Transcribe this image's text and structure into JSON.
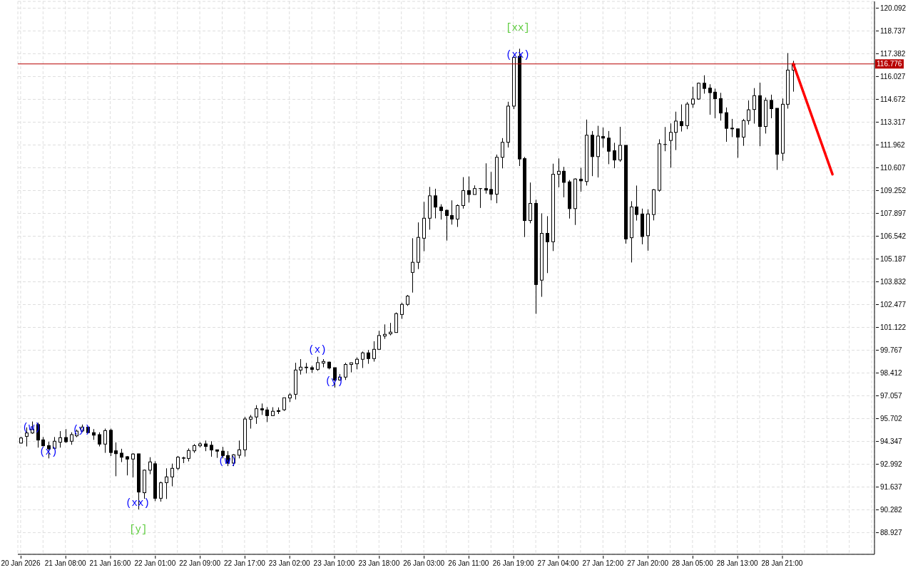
{
  "chart_data": {
    "type": "candlestick",
    "color": "#000000",
    "categories": [
      "20 Jan 2026",
      null,
      null,
      null,
      null,
      null,
      null,
      null,
      "21 Jan 08:00",
      null,
      null,
      null,
      null,
      null,
      null,
      null,
      "21 Jan 16:00",
      null,
      null,
      null,
      null,
      null,
      null,
      null,
      "22 Jan 01:00",
      null,
      null,
      null,
      null,
      null,
      null,
      null,
      "22 Jan 09:00",
      null,
      null,
      null,
      null,
      null,
      null,
      null,
      "22 Jan 17:00",
      null,
      null,
      null,
      null,
      null,
      null,
      null,
      "23 Jan 02:00",
      null,
      null,
      null,
      null,
      null,
      null,
      null,
      "23 Jan 10:00",
      null,
      null,
      null,
      null,
      null,
      null,
      null,
      "23 Jan 18:00",
      null,
      null,
      null,
      null,
      null,
      null,
      null,
      "26 Jan 03:00",
      null,
      null,
      null,
      null,
      null,
      null,
      null,
      "26 Jan 11:00",
      null,
      null,
      null,
      null,
      null,
      null,
      null,
      "26 Jan 19:00",
      null,
      null,
      null,
      null,
      null,
      null,
      null,
      "27 Jan 04:00",
      null,
      null,
      null,
      null,
      null,
      null,
      null,
      "27 Jan 12:00",
      null,
      null,
      null,
      null,
      null,
      null,
      null,
      "27 Jan 20:00",
      null,
      null,
      null,
      null,
      null,
      null,
      null,
      "28 Jan 05:00",
      null,
      null,
      null,
      null,
      null,
      null,
      null,
      "28 Jan 13:00",
      null,
      null,
      null,
      null,
      null,
      null,
      null,
      "28 Jan 21:00",
      null,
      null,
      null,
      null,
      null,
      null,
      null,
      null,
      null,
      null,
      null,
      null,
      null,
      null,
      null,
      null
    ],
    "ohlc": [
      [
        94.25,
        94.62,
        94.22,
        94.55
      ],
      [
        94.65,
        95.18,
        94.05,
        94.85
      ],
      [
        94.85,
        95.53,
        94.8,
        95.08
      ],
      [
        95.35,
        95.46,
        93.98,
        94.43
      ],
      [
        94.44,
        94.61,
        94.05,
        94.09
      ],
      [
        94.1,
        94.33,
        93.34,
        93.91
      ],
      [
        93.94,
        94.61,
        93.88,
        94.36
      ],
      [
        94.3,
        94.96,
        93.98,
        94.57
      ],
      [
        94.58,
        95.08,
        94.26,
        94.33
      ],
      [
        94.36,
        94.89,
        94.15,
        94.75
      ],
      [
        94.68,
        95.05,
        94.6,
        94.96
      ],
      [
        94.97,
        95.35,
        94.9,
        95.2
      ],
      [
        95.2,
        95.25,
        94.85,
        94.87
      ],
      [
        94.87,
        95.08,
        94.44,
        94.72
      ],
      [
        94.75,
        94.89,
        94.05,
        94.19
      ],
      [
        94.19,
        95.11,
        93.67,
        94.99
      ],
      [
        95.01,
        95.11,
        93.48,
        93.69
      ],
      [
        93.79,
        94.29,
        92.28,
        93.62
      ],
      [
        93.65,
        93.91,
        93.12,
        93.41
      ],
      [
        93.44,
        93.48,
        92.33,
        93.3
      ],
      [
        93.3,
        93.65,
        92.21,
        93.6
      ],
      [
        93.61,
        93.62,
        90.31,
        91.34
      ],
      [
        91.3,
        92.68,
        90.94,
        92.64
      ],
      [
        92.64,
        93.41,
        92.4,
        93.13
      ],
      [
        93.02,
        93.17,
        90.8,
        90.97
      ],
      [
        90.97,
        91.96,
        90.77,
        91.89
      ],
      [
        91.9,
        92.75,
        90.93,
        92.24
      ],
      [
        92.24,
        93.03,
        91.68,
        92.75
      ],
      [
        92.75,
        93.48,
        92.64,
        93.41
      ],
      [
        93.37,
        93.44,
        93.06,
        93.35
      ],
      [
        93.34,
        93.93,
        93.16,
        93.81
      ],
      [
        93.79,
        94.19,
        93.67,
        94.1
      ],
      [
        94.09,
        94.3,
        94.0,
        94.2
      ],
      [
        94.2,
        94.4,
        93.77,
        94.05
      ],
      [
        94.12,
        94.36,
        93.44,
        93.84
      ],
      [
        93.85,
        93.86,
        93.37,
        93.77
      ],
      [
        93.77,
        94.02,
        93.34,
        93.51
      ],
      [
        93.51,
        93.77,
        92.88,
        93.06
      ],
      [
        93.06,
        93.59,
        92.88,
        93.55
      ],
      [
        93.53,
        94.4,
        93.34,
        93.85
      ],
      [
        93.85,
        95.81,
        93.45,
        95.68
      ],
      [
        95.67,
        95.92,
        95.11,
        95.8
      ],
      [
        95.8,
        96.5,
        95.39,
        96.29
      ],
      [
        96.29,
        96.6,
        95.92,
        96.22
      ],
      [
        96.22,
        96.39,
        95.5,
        95.88
      ],
      [
        95.88,
        96.38,
        95.86,
        96.14
      ],
      [
        96.18,
        96.37,
        95.98,
        96.13
      ],
      [
        96.23,
        96.95,
        96.16,
        96.94
      ],
      [
        96.93,
        97.22,
        96.69,
        97.11
      ],
      [
        97.15,
        99.02,
        96.84,
        98.59
      ],
      [
        98.59,
        99.24,
        98.32,
        98.76
      ],
      [
        98.76,
        99.01,
        98.39,
        98.73
      ],
      [
        98.73,
        98.85,
        98.42,
        98.63
      ],
      [
        98.63,
        99.38,
        98.54,
        99.03
      ],
      [
        99.0,
        99.24,
        98.75,
        99.1
      ],
      [
        99.06,
        99.09,
        98.63,
        98.71
      ],
      [
        98.73,
        98.73,
        97.55,
        98.0
      ],
      [
        98.0,
        98.35,
        97.95,
        98.17
      ],
      [
        98.17,
        99.02,
        98.0,
        98.92
      ],
      [
        98.92,
        99.03,
        98.45,
        99.02
      ],
      [
        98.96,
        99.34,
        98.63,
        99.23
      ],
      [
        99.23,
        99.69,
        98.71,
        99.61
      ],
      [
        99.61,
        99.78,
        98.96,
        99.27
      ],
      [
        99.27,
        100.3,
        99.09,
        99.82
      ],
      [
        99.82,
        100.92,
        99.8,
        100.64
      ],
      [
        100.61,
        101.3,
        100.44,
        100.71
      ],
      [
        100.74,
        101.39,
        100.65,
        100.84
      ],
      [
        100.82,
        102.01,
        100.82,
        101.94
      ],
      [
        101.89,
        102.59,
        101.63,
        102.49
      ],
      [
        102.49,
        103.05,
        102.4,
        102.98
      ],
      [
        104.39,
        106.42,
        103.19,
        104.99
      ],
      [
        104.99,
        107.36,
        104.59,
        106.47
      ],
      [
        106.42,
        108.58,
        105.65,
        107.61
      ],
      [
        107.61,
        109.47,
        106.93,
        108.94
      ],
      [
        108.94,
        109.36,
        107.6,
        108.27
      ],
      [
        108.27,
        108.44,
        107.53,
        108.06
      ],
      [
        108.08,
        108.13,
        106.28,
        107.77
      ],
      [
        107.77,
        108.67,
        107.23,
        107.56
      ],
      [
        107.56,
        108.43,
        107.09,
        108.36
      ],
      [
        108.36,
        110.05,
        108.18,
        109.25
      ],
      [
        109.25,
        110.09,
        108.54,
        109.02
      ],
      [
        109.02,
        109.56,
        109.02,
        109.37
      ],
      [
        109.37,
        109.39,
        108.22,
        109.37
      ],
      [
        109.37,
        110.87,
        109.07,
        109.28
      ],
      [
        109.32,
        110.36,
        108.67,
        109.04
      ],
      [
        109.04,
        111.39,
        108.5,
        111.23
      ],
      [
        111.23,
        112.37,
        110.57,
        112.12
      ],
      [
        112.12,
        114.53,
        111.81,
        114.27
      ],
      [
        114.27,
        117.3,
        114.09,
        117.16
      ],
      [
        117.23,
        117.68,
        110.71,
        111.13
      ],
      [
        111.15,
        111.25,
        106.49,
        107.47
      ],
      [
        107.47,
        109.73,
        107.31,
        108.49
      ],
      [
        108.49,
        108.71,
        101.93,
        103.67
      ],
      [
        103.93,
        107.9,
        102.94,
        106.71
      ],
      [
        106.71,
        107.73,
        104.35,
        106.21
      ],
      [
        106.21,
        110.85,
        105.66,
        110.22
      ],
      [
        110.22,
        111.16,
        109.45,
        110.4
      ],
      [
        110.4,
        110.66,
        108.85,
        109.74
      ],
      [
        109.77,
        109.88,
        107.59,
        108.18
      ],
      [
        108.18,
        109.98,
        107.21,
        109.94
      ],
      [
        109.93,
        110.61,
        109.19,
        109.83
      ],
      [
        109.79,
        113.47,
        109.55,
        112.54
      ],
      [
        112.54,
        112.79,
        110.11,
        111.27
      ],
      [
        111.27,
        113.1,
        110.03,
        112.49
      ],
      [
        112.46,
        113.0,
        111.8,
        112.37
      ],
      [
        112.37,
        112.79,
        110.82,
        111.59
      ],
      [
        111.62,
        112.09,
        110.58,
        111.07
      ],
      [
        111.07,
        113.04,
        110.96,
        111.94
      ],
      [
        111.94,
        111.94,
        106.1,
        106.38
      ],
      [
        106.45,
        108.62,
        104.98,
        108.28
      ],
      [
        108.28,
        109.55,
        107.47,
        107.83
      ],
      [
        107.86,
        108.18,
        106.06,
        106.52
      ],
      [
        106.57,
        108.14,
        105.68,
        107.86
      ],
      [
        107.83,
        109.34,
        107.48,
        109.3
      ],
      [
        109.27,
        112.3,
        109.19,
        112.03
      ],
      [
        111.99,
        113.03,
        111.59,
        111.99
      ],
      [
        112.23,
        113.24,
        110.61,
        112.71
      ],
      [
        112.71,
        113.94,
        111.66,
        113.38
      ],
      [
        113.35,
        114.37,
        112.76,
        113.11
      ],
      [
        113.11,
        114.51,
        112.9,
        114.39
      ],
      [
        114.39,
        115.42,
        114.17,
        114.69
      ],
      [
        114.69,
        115.67,
        114.65,
        115.63
      ],
      [
        115.63,
        116.1,
        115.01,
        115.32
      ],
      [
        115.34,
        115.57,
        113.76,
        115.07
      ],
      [
        115.1,
        115.31,
        113.55,
        114.71
      ],
      [
        114.72,
        115.06,
        113.41,
        113.86
      ],
      [
        113.88,
        114.19,
        112.15,
        112.95
      ],
      [
        112.96,
        113.51,
        112.43,
        112.92
      ],
      [
        112.92,
        112.92,
        111.2,
        112.43
      ],
      [
        112.43,
        113.51,
        111.91,
        113.41
      ],
      [
        113.41,
        114.61,
        113.17,
        114.05
      ],
      [
        114.07,
        115.34,
        113.23,
        114.89
      ],
      [
        114.89,
        115.66,
        111.89,
        113.06
      ],
      [
        113.06,
        114.78,
        112.64,
        114.61
      ],
      [
        114.61,
        114.95,
        113.55,
        114.12
      ],
      [
        114.14,
        114.14,
        110.48,
        111.41
      ],
      [
        111.47,
        114.72,
        111.02,
        114.38
      ],
      [
        114.38,
        117.42,
        114.12,
        116.41
      ],
      [
        116.41,
        116.96,
        115.13,
        116.776
      ],
      null,
      null,
      null,
      null,
      null,
      null,
      null,
      null,
      null,
      null,
      null,
      null,
      null,
      null
    ],
    "series": [
      {
        "type": "line",
        "color": "#ff0000",
        "values": [
          null,
          null,
          null,
          null,
          null,
          null,
          null,
          null,
          null,
          null,
          null,
          null,
          null,
          null,
          null,
          null,
          null,
          null,
          null,
          null,
          null,
          null,
          null,
          null,
          null,
          null,
          null,
          null,
          null,
          null,
          null,
          null,
          null,
          null,
          null,
          null,
          null,
          null,
          null,
          null,
          null,
          null,
          null,
          null,
          null,
          null,
          null,
          null,
          null,
          null,
          null,
          null,
          null,
          null,
          null,
          null,
          null,
          null,
          null,
          null,
          null,
          null,
          null,
          null,
          null,
          null,
          null,
          null,
          null,
          null,
          null,
          null,
          null,
          null,
          null,
          null,
          null,
          null,
          null,
          null,
          null,
          null,
          null,
          null,
          null,
          null,
          null,
          null,
          null,
          null,
          null,
          null,
          null,
          null,
          null,
          null,
          null,
          null,
          null,
          null,
          null,
          null,
          null,
          null,
          null,
          null,
          null,
          null,
          null,
          null,
          null,
          null,
          null,
          null,
          null,
          null,
          null,
          null,
          null,
          null,
          null,
          null,
          null,
          null,
          null,
          null,
          null,
          null,
          null,
          null,
          null,
          null,
          null,
          null,
          null,
          null,
          null,
          null,
          116.78,
          null,
          null,
          null,
          null,
          null,
          null,
          110.22,
          null,
          null,
          null,
          null,
          null,
          null,
          null
        ]
      }
    ],
    "ylim": [
      87.64,
      120.49
    ],
    "yticks": [
      88.927,
      90.282,
      91.637,
      92.992,
      94.347,
      95.702,
      97.057,
      98.412,
      99.767,
      101.122,
      102.477,
      103.832,
      105.187,
      106.542,
      107.897,
      109.252,
      110.607,
      111.962,
      113.317,
      114.672,
      116.027,
      117.382,
      118.737,
      120.092
    ],
    "ref_lines": [
      {
        "axis": "y",
        "value": 116.776,
        "label": "116.776",
        "color": "#b80000"
      }
    ],
    "annotations": [
      "(w)",
      "(x)",
      "(y)",
      "(xx)",
      "[y]",
      "(w)",
      "(x)",
      "(y)",
      "(xx)",
      "[xx]"
    ],
    "grid": true
  }
}
